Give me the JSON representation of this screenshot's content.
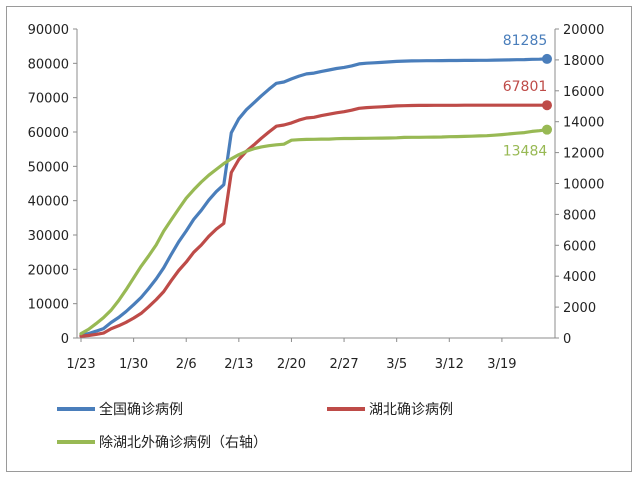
{
  "chart_data": {
    "type": "line",
    "title": "",
    "x_tick_labels": [
      "1/23",
      "1/30",
      "2/6",
      "2/13",
      "2/20",
      "2/27",
      "3/5",
      "3/12",
      "3/19"
    ],
    "y_left": {
      "range": [
        0,
        90000
      ],
      "ticks": [
        "0",
        "10000",
        "20000",
        "30000",
        "40000",
        "50000",
        "60000",
        "70000",
        "80000",
        "90000"
      ]
    },
    "y_right": {
      "range": [
        0,
        20000
      ],
      "ticks": [
        "0",
        "2000",
        "4000",
        "6000",
        "8000",
        "10000",
        "12000",
        "14000",
        "16000",
        "18000",
        "20000"
      ]
    },
    "grid": false,
    "legend_position": "bottom",
    "series": [
      {
        "name": "全国确诊病例",
        "axis": "left",
        "color": "#4a7ebb",
        "end_label": "81285",
        "x": [
          "1/23",
          "1/24",
          "1/25",
          "1/26",
          "1/27",
          "1/28",
          "1/29",
          "1/30",
          "1/31",
          "2/1",
          "2/2",
          "2/3",
          "2/4",
          "2/5",
          "2/6",
          "2/7",
          "2/8",
          "2/9",
          "2/10",
          "2/11",
          "2/12",
          "2/13",
          "2/14",
          "2/15",
          "2/16",
          "2/17",
          "2/18",
          "2/19",
          "2/20",
          "2/21",
          "2/22",
          "2/23",
          "2/24",
          "2/25",
          "2/26",
          "2/27",
          "2/28",
          "2/29",
          "3/1",
          "3/2",
          "3/3",
          "3/4",
          "3/5",
          "3/6",
          "3/7",
          "3/8",
          "3/9",
          "3/10",
          "3/11",
          "3/12",
          "3/13",
          "3/14",
          "3/15",
          "3/16",
          "3/17",
          "3/18",
          "3/19",
          "3/20",
          "3/21",
          "3/22",
          "3/23",
          "3/24",
          "3/25"
        ],
        "values": [
          830,
          1287,
          1975,
          2744,
          4515,
          5974,
          7711,
          9692,
          11791,
          14380,
          17205,
          20438,
          24324,
          28018,
          31161,
          34546,
          37198,
          40171,
          42638,
          44653,
          59804,
          63851,
          66492,
          68500,
          70548,
          72436,
          74185,
          74576,
          75465,
          76288,
          76936,
          77150,
          77658,
          78064,
          78497,
          78824,
          79251,
          79824,
          80026,
          80151,
          80270,
          80409,
          80552,
          80651,
          80695,
          80735,
          80754,
          80778,
          80793,
          80813,
          80824,
          80844,
          80860,
          80881,
          80894,
          80928,
          80967,
          81008,
          81054,
          81093,
          81171,
          81218,
          81285
        ]
      },
      {
        "name": "湖北确诊病例",
        "axis": "left",
        "color": "#be4b48",
        "end_label": "67801",
        "x": [
          "1/23",
          "1/24",
          "1/25",
          "1/26",
          "1/27",
          "1/28",
          "1/29",
          "1/30",
          "1/31",
          "2/1",
          "2/2",
          "2/3",
          "2/4",
          "2/5",
          "2/6",
          "2/7",
          "2/8",
          "2/9",
          "2/10",
          "2/11",
          "2/12",
          "2/13",
          "2/14",
          "2/15",
          "2/16",
          "2/17",
          "2/18",
          "2/19",
          "2/20",
          "2/21",
          "2/22",
          "2/23",
          "2/24",
          "2/25",
          "2/26",
          "2/27",
          "2/28",
          "2/29",
          "3/1",
          "3/2",
          "3/3",
          "3/4",
          "3/5",
          "3/6",
          "3/7",
          "3/8",
          "3/9",
          "3/10",
          "3/11",
          "3/12",
          "3/13",
          "3/14",
          "3/15",
          "3/16",
          "3/17",
          "3/18",
          "3/19",
          "3/20",
          "3/21",
          "3/22",
          "3/23",
          "3/24",
          "3/25"
        ],
        "values": [
          549,
          729,
          1052,
          1423,
          2714,
          3554,
          4586,
          5806,
          7153,
          9074,
          11177,
          13522,
          16678,
          19665,
          22112,
          24953,
          27100,
          29631,
          31728,
          33366,
          48206,
          51986,
          54406,
          56249,
          58182,
          59989,
          61682,
          62031,
          62662,
          63454,
          64084,
          64287,
          64786,
          65187,
          65596,
          65914,
          66337,
          66907,
          67103,
          67217,
          67332,
          67466,
          67592,
          67666,
          67707,
          67743,
          67760,
          67773,
          67781,
          67786,
          67790,
          67794,
          67798,
          67799,
          67800,
          67800,
          67800,
          67800,
          67800,
          67800,
          67801,
          67801,
          67801
        ]
      },
      {
        "name": "除湖北外确诊病例（右轴）",
        "axis": "right",
        "color": "#98b954",
        "end_label": "13484",
        "x": [
          "1/23",
          "1/24",
          "1/25",
          "1/26",
          "1/27",
          "1/28",
          "1/29",
          "1/30",
          "1/31",
          "2/1",
          "2/2",
          "2/3",
          "2/4",
          "2/5",
          "2/6",
          "2/7",
          "2/8",
          "2/9",
          "2/10",
          "2/11",
          "2/12",
          "2/13",
          "2/14",
          "2/15",
          "2/16",
          "2/17",
          "2/18",
          "2/19",
          "2/20",
          "2/21",
          "2/22",
          "2/23",
          "2/24",
          "2/25",
          "2/26",
          "2/27",
          "2/28",
          "2/29",
          "3/1",
          "3/2",
          "3/3",
          "3/4",
          "3/5",
          "3/6",
          "3/7",
          "3/8",
          "3/9",
          "3/10",
          "3/11",
          "3/12",
          "3/13",
          "3/14",
          "3/15",
          "3/16",
          "3/17",
          "3/18",
          "3/19",
          "3/20",
          "3/21",
          "3/22",
          "3/23",
          "3/24",
          "3/25"
        ],
        "values": [
          281,
          558,
          923,
          1321,
          1801,
          2420,
          3125,
          3886,
          4638,
          5306,
          6028,
          6916,
          7646,
          8353,
          9049,
          9593,
          10098,
          10540,
          10910,
          11287,
          11598,
          11865,
          12086,
          12251,
          12366,
          12447,
          12503,
          12545,
          12803,
          12834,
          12852,
          12863,
          12872,
          12877,
          12901,
          12910,
          12914,
          12917,
          12923,
          12934,
          12938,
          12943,
          12960,
          12985,
          12988,
          12992,
          12994,
          13005,
          13012,
          13027,
          13034,
          13050,
          13062,
          13082,
          13094,
          13128,
          13167,
          13208,
          13254,
          13293,
          13370,
          13417,
          13484
        ]
      }
    ]
  }
}
